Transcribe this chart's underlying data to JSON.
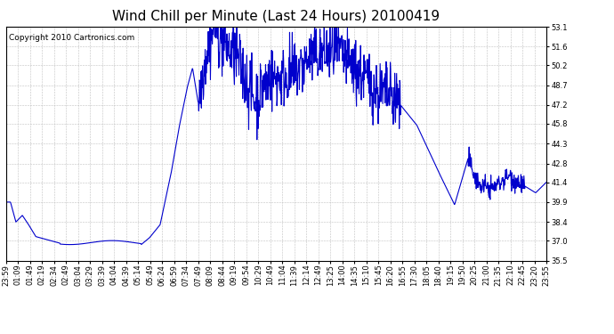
{
  "title": "Wind Chill per Minute (Last 24 Hours) 20100419",
  "copyright": "Copyright 2010 Cartronics.com",
  "line_color": "#0000cc",
  "background_color": "#ffffff",
  "plot_bg_color": "#ffffff",
  "grid_color": "#bbbbbb",
  "ylim": [
    35.5,
    53.1
  ],
  "yticks": [
    35.5,
    37.0,
    38.4,
    39.9,
    41.4,
    42.8,
    44.3,
    45.8,
    47.2,
    48.7,
    50.2,
    51.6,
    53.1
  ],
  "xtick_labels": [
    "23:59",
    "01:09",
    "01:49",
    "02:19",
    "02:34",
    "02:49",
    "03:04",
    "03:29",
    "03:39",
    "04:04",
    "04:39",
    "05:14",
    "05:49",
    "06:24",
    "06:59",
    "07:34",
    "07:49",
    "08:09",
    "08:44",
    "09:19",
    "09:54",
    "10:29",
    "10:49",
    "11:04",
    "11:39",
    "12:14",
    "12:49",
    "13:25",
    "14:00",
    "14:35",
    "15:10",
    "15:45",
    "16:20",
    "16:55",
    "17:30",
    "18:05",
    "18:40",
    "19:15",
    "19:50",
    "20:25",
    "21:00",
    "21:35",
    "22:10",
    "22:45",
    "23:20",
    "23:55"
  ],
  "title_fontsize": 11,
  "copyright_fontsize": 6.5,
  "tick_fontsize": 6,
  "line_width": 0.8
}
